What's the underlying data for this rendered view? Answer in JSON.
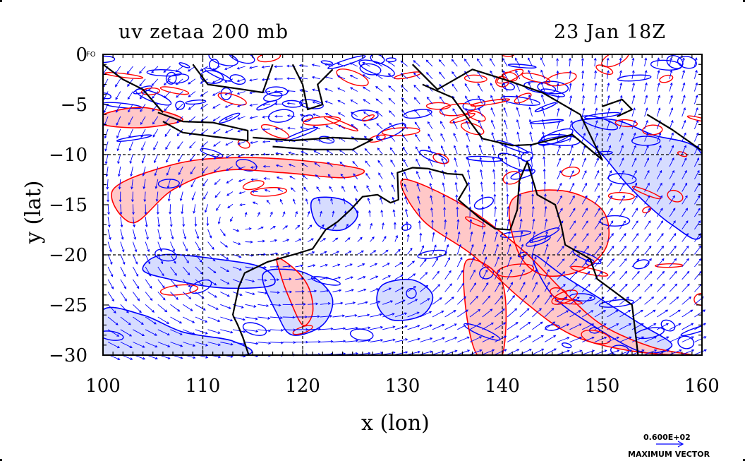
{
  "header": {
    "title_left": "uv zetaa 200 mb",
    "title_right": "23 Jan 18Z"
  },
  "vector_key": {
    "value": "0.600E+02",
    "label": "MAXIMUM VECTOR"
  },
  "map_small_label": "FO",
  "colors": {
    "positive_contour": "#ff0000",
    "positive_fill": "#ffc8c8",
    "negative_contour": "#0000ff",
    "negative_fill": "#d6dcff",
    "vectors": "#0000ff",
    "coastline": "#000000",
    "grid": "#000000"
  },
  "chart_data": {
    "type": "contour",
    "title": "uv zetaa 200 mb",
    "subtitle": "23 Jan 18Z",
    "xlabel": "x (lon)",
    "ylabel": "y (lat)",
    "xlim": [
      100,
      160
    ],
    "ylim": [
      -30,
      0
    ],
    "xticks": [
      100,
      110,
      120,
      130,
      140,
      150,
      160
    ],
    "yticks": [
      0,
      -5,
      -10,
      -15,
      -20,
      -25,
      -30
    ],
    "grid": true,
    "grid_style": "dashed",
    "grid_lon": [
      110,
      120,
      130,
      140,
      150
    ],
    "grid_lat": [
      -10,
      -20
    ],
    "series": [
      {
        "name": "zetaa",
        "kind": "filled contour (red positive, blue negative)"
      },
      {
        "name": "uv",
        "kind": "wind vectors"
      }
    ],
    "positive_bands": [
      {
        "kind": "band",
        "pts": [
          [
            101,
            -13.5
          ],
          [
            107,
            -11
          ],
          [
            113,
            -10.3
          ],
          [
            120,
            -10.6
          ],
          [
            126,
            -11.5
          ],
          [
            124,
            -12.3
          ],
          [
            118,
            -11.8
          ],
          [
            112,
            -11.6
          ],
          [
            107,
            -13.5
          ],
          [
            103,
            -16.8
          ]
        ]
      },
      {
        "kind": "band",
        "pts": [
          [
            130,
            -12.5
          ],
          [
            136,
            -15
          ],
          [
            142,
            -19.5
          ],
          [
            146,
            -23.5
          ],
          [
            150,
            -27
          ],
          [
            155,
            -29.2
          ],
          [
            159,
            -30
          ],
          [
            153,
            -29.6
          ],
          [
            147,
            -28
          ],
          [
            142,
            -24.5
          ],
          [
            137,
            -20
          ],
          [
            132,
            -16.5
          ]
        ]
      },
      {
        "kind": "band",
        "pts": [
          [
            136.5,
            -20.5
          ],
          [
            140,
            -22.8
          ],
          [
            140,
            -30
          ],
          [
            137.5,
            -30
          ],
          [
            136.3,
            -25
          ]
        ]
      },
      {
        "kind": "blob",
        "pts": [
          [
            141,
            -14.5
          ],
          [
            146,
            -13.6
          ],
          [
            150,
            -15.5
          ],
          [
            150.5,
            -19
          ],
          [
            148,
            -21.5
          ],
          [
            144,
            -22
          ],
          [
            141.5,
            -19.5
          ]
        ]
      },
      {
        "kind": "blob",
        "pts": [
          [
            117.5,
            -20.3
          ],
          [
            119.5,
            -21.7
          ],
          [
            120.7,
            -23.5
          ],
          [
            121,
            -25.8
          ],
          [
            120,
            -27
          ],
          [
            118.6,
            -24.2
          ],
          [
            117.8,
            -22
          ]
        ]
      },
      {
        "kind": "band",
        "pts": [
          [
            100,
            -6
          ],
          [
            104,
            -5.3
          ],
          [
            108,
            -6.5
          ],
          [
            104,
            -7.3
          ],
          [
            100,
            -7
          ]
        ]
      }
    ],
    "negative_bands": [
      {
        "kind": "blob",
        "pts": [
          [
            106,
            -20
          ],
          [
            112,
            -20.5
          ],
          [
            116,
            -21.3
          ],
          [
            117,
            -23
          ],
          [
            112,
            -23.3
          ],
          [
            107,
            -22.5
          ],
          [
            104,
            -21.5
          ]
        ]
      },
      {
        "kind": "blob",
        "pts": [
          [
            116,
            -22
          ],
          [
            119,
            -21.5
          ],
          [
            121.5,
            -22.5
          ],
          [
            123,
            -24.5
          ],
          [
            122,
            -27
          ],
          [
            119,
            -28
          ],
          [
            117.5,
            -26
          ]
        ]
      },
      {
        "kind": "blob",
        "pts": [
          [
            100,
            -25.5
          ],
          [
            104,
            -26
          ],
          [
            108,
            -27.7
          ],
          [
            113,
            -28.6
          ],
          [
            114,
            -30
          ],
          [
            100,
            -30
          ]
        ]
      },
      {
        "kind": "blob",
        "pts": [
          [
            147,
            -7
          ],
          [
            151,
            -6.5
          ],
          [
            155,
            -8
          ],
          [
            160,
            -10
          ],
          [
            160,
            -18
          ],
          [
            157,
            -17
          ],
          [
            153,
            -13.5
          ],
          [
            150,
            -10
          ]
        ]
      },
      {
        "kind": "blob",
        "pts": [
          [
            143,
            -20
          ],
          [
            146,
            -22
          ],
          [
            150,
            -24.5
          ],
          [
            154,
            -27
          ],
          [
            157,
            -29
          ],
          [
            154,
            -29.7
          ],
          [
            149,
            -27
          ],
          [
            145,
            -24
          ]
        ]
      },
      {
        "kind": "blob",
        "pts": [
          [
            121,
            -14.5
          ],
          [
            124,
            -14.5
          ],
          [
            125.5,
            -16
          ],
          [
            124,
            -17.5
          ],
          [
            121.5,
            -17
          ]
        ]
      },
      {
        "kind": "blob",
        "pts": [
          [
            128,
            -23
          ],
          [
            131,
            -22.5
          ],
          [
            133,
            -24
          ],
          [
            132,
            -26
          ],
          [
            129,
            -26.5
          ],
          [
            127.5,
            -25
          ]
        ]
      }
    ],
    "coastlines": [
      {
        "kind": "coast",
        "pts": [
          [
            113,
            -26
          ],
          [
            113.6,
            -23.2
          ],
          [
            114.2,
            -21.8
          ],
          [
            116.5,
            -20.7
          ],
          [
            119,
            -20
          ],
          [
            121,
            -19.4
          ],
          [
            122.3,
            -17.5
          ],
          [
            123.5,
            -16.7
          ],
          [
            124.8,
            -15.5
          ],
          [
            126,
            -14.2
          ],
          [
            127.5,
            -14
          ],
          [
            128.8,
            -14.8
          ],
          [
            129.6,
            -14.5
          ],
          [
            129.5,
            -11.8
          ],
          [
            131,
            -11.3
          ],
          [
            132.6,
            -11.4
          ],
          [
            134.5,
            -11.9
          ],
          [
            136,
            -12
          ],
          [
            136.5,
            -13
          ],
          [
            135.6,
            -14.5
          ],
          [
            137.7,
            -16.3
          ],
          [
            139.3,
            -17.4
          ],
          [
            140.8,
            -17.5
          ],
          [
            141.5,
            -15.5
          ],
          [
            141.7,
            -12.6
          ],
          [
            142.5,
            -10.7
          ],
          [
            143.5,
            -14
          ],
          [
            145.3,
            -15
          ],
          [
            145.9,
            -17
          ],
          [
            146.3,
            -19
          ],
          [
            148.8,
            -20.4
          ],
          [
            149.5,
            -22.4
          ],
          [
            151,
            -23.5
          ],
          [
            153,
            -25
          ],
          [
            153.3,
            -27.5
          ],
          [
            153.6,
            -30
          ]
        ]
      },
      {
        "kind": "coast",
        "pts": [
          [
            113,
            -26
          ],
          [
            113.5,
            -27
          ],
          [
            114,
            -28.2
          ],
          [
            114.6,
            -30
          ]
        ]
      },
      {
        "kind": "coast",
        "pts": [
          [
            105.5,
            -5.8
          ],
          [
            108,
            -6.7
          ],
          [
            111,
            -6.8
          ],
          [
            114.5,
            -7.6
          ],
          [
            114.5,
            -8.6
          ],
          [
            111,
            -8.2
          ],
          [
            108,
            -7.8
          ],
          [
            106,
            -6.7
          ]
        ]
      },
      {
        "kind": "coast",
        "pts": [
          [
            115,
            -8.3
          ],
          [
            119,
            -8.6
          ],
          [
            123,
            -8.3
          ],
          [
            127,
            -8.5
          ],
          [
            125,
            -9.5
          ],
          [
            121,
            -9.5
          ],
          [
            117,
            -9.2
          ]
        ]
      },
      {
        "kind": "coast",
        "pts": [
          [
            100,
            -1
          ],
          [
            102,
            -2.5
          ],
          [
            104,
            -3.5
          ],
          [
            106,
            -5.8
          ]
        ]
      },
      {
        "kind": "coast",
        "pts": [
          [
            109,
            -1
          ],
          [
            110.5,
            -3
          ],
          [
            114,
            -3.5
          ],
          [
            116,
            -3.8
          ],
          [
            117,
            -1
          ]
        ]
      },
      {
        "kind": "coast",
        "pts": [
          [
            119,
            -1
          ],
          [
            120,
            -3
          ],
          [
            120.5,
            -5.5
          ],
          [
            122,
            -5
          ],
          [
            121.5,
            -3
          ],
          [
            123,
            -1.5
          ]
        ]
      },
      {
        "kind": "coast",
        "pts": [
          [
            131,
            -1
          ],
          [
            133.5,
            -3.5
          ],
          [
            137,
            -1.5
          ],
          [
            140.5,
            -2.6
          ],
          [
            144,
            -3.8
          ],
          [
            147.8,
            -6
          ],
          [
            150,
            -10.5
          ],
          [
            147,
            -8
          ],
          [
            143,
            -9
          ],
          [
            141,
            -9.1
          ],
          [
            138,
            -8.4
          ],
          [
            135,
            -4.3
          ],
          [
            132,
            -3
          ]
        ]
      },
      {
        "kind": "coast",
        "pts": [
          [
            150,
            -5.2
          ],
          [
            152,
            -4.5
          ],
          [
            153,
            -5.5
          ],
          [
            151.5,
            -6.2
          ]
        ]
      },
      {
        "kind": "coast",
        "pts": [
          [
            154.5,
            -6
          ],
          [
            157,
            -7.5
          ],
          [
            160,
            -9.6
          ]
        ]
      }
    ]
  }
}
